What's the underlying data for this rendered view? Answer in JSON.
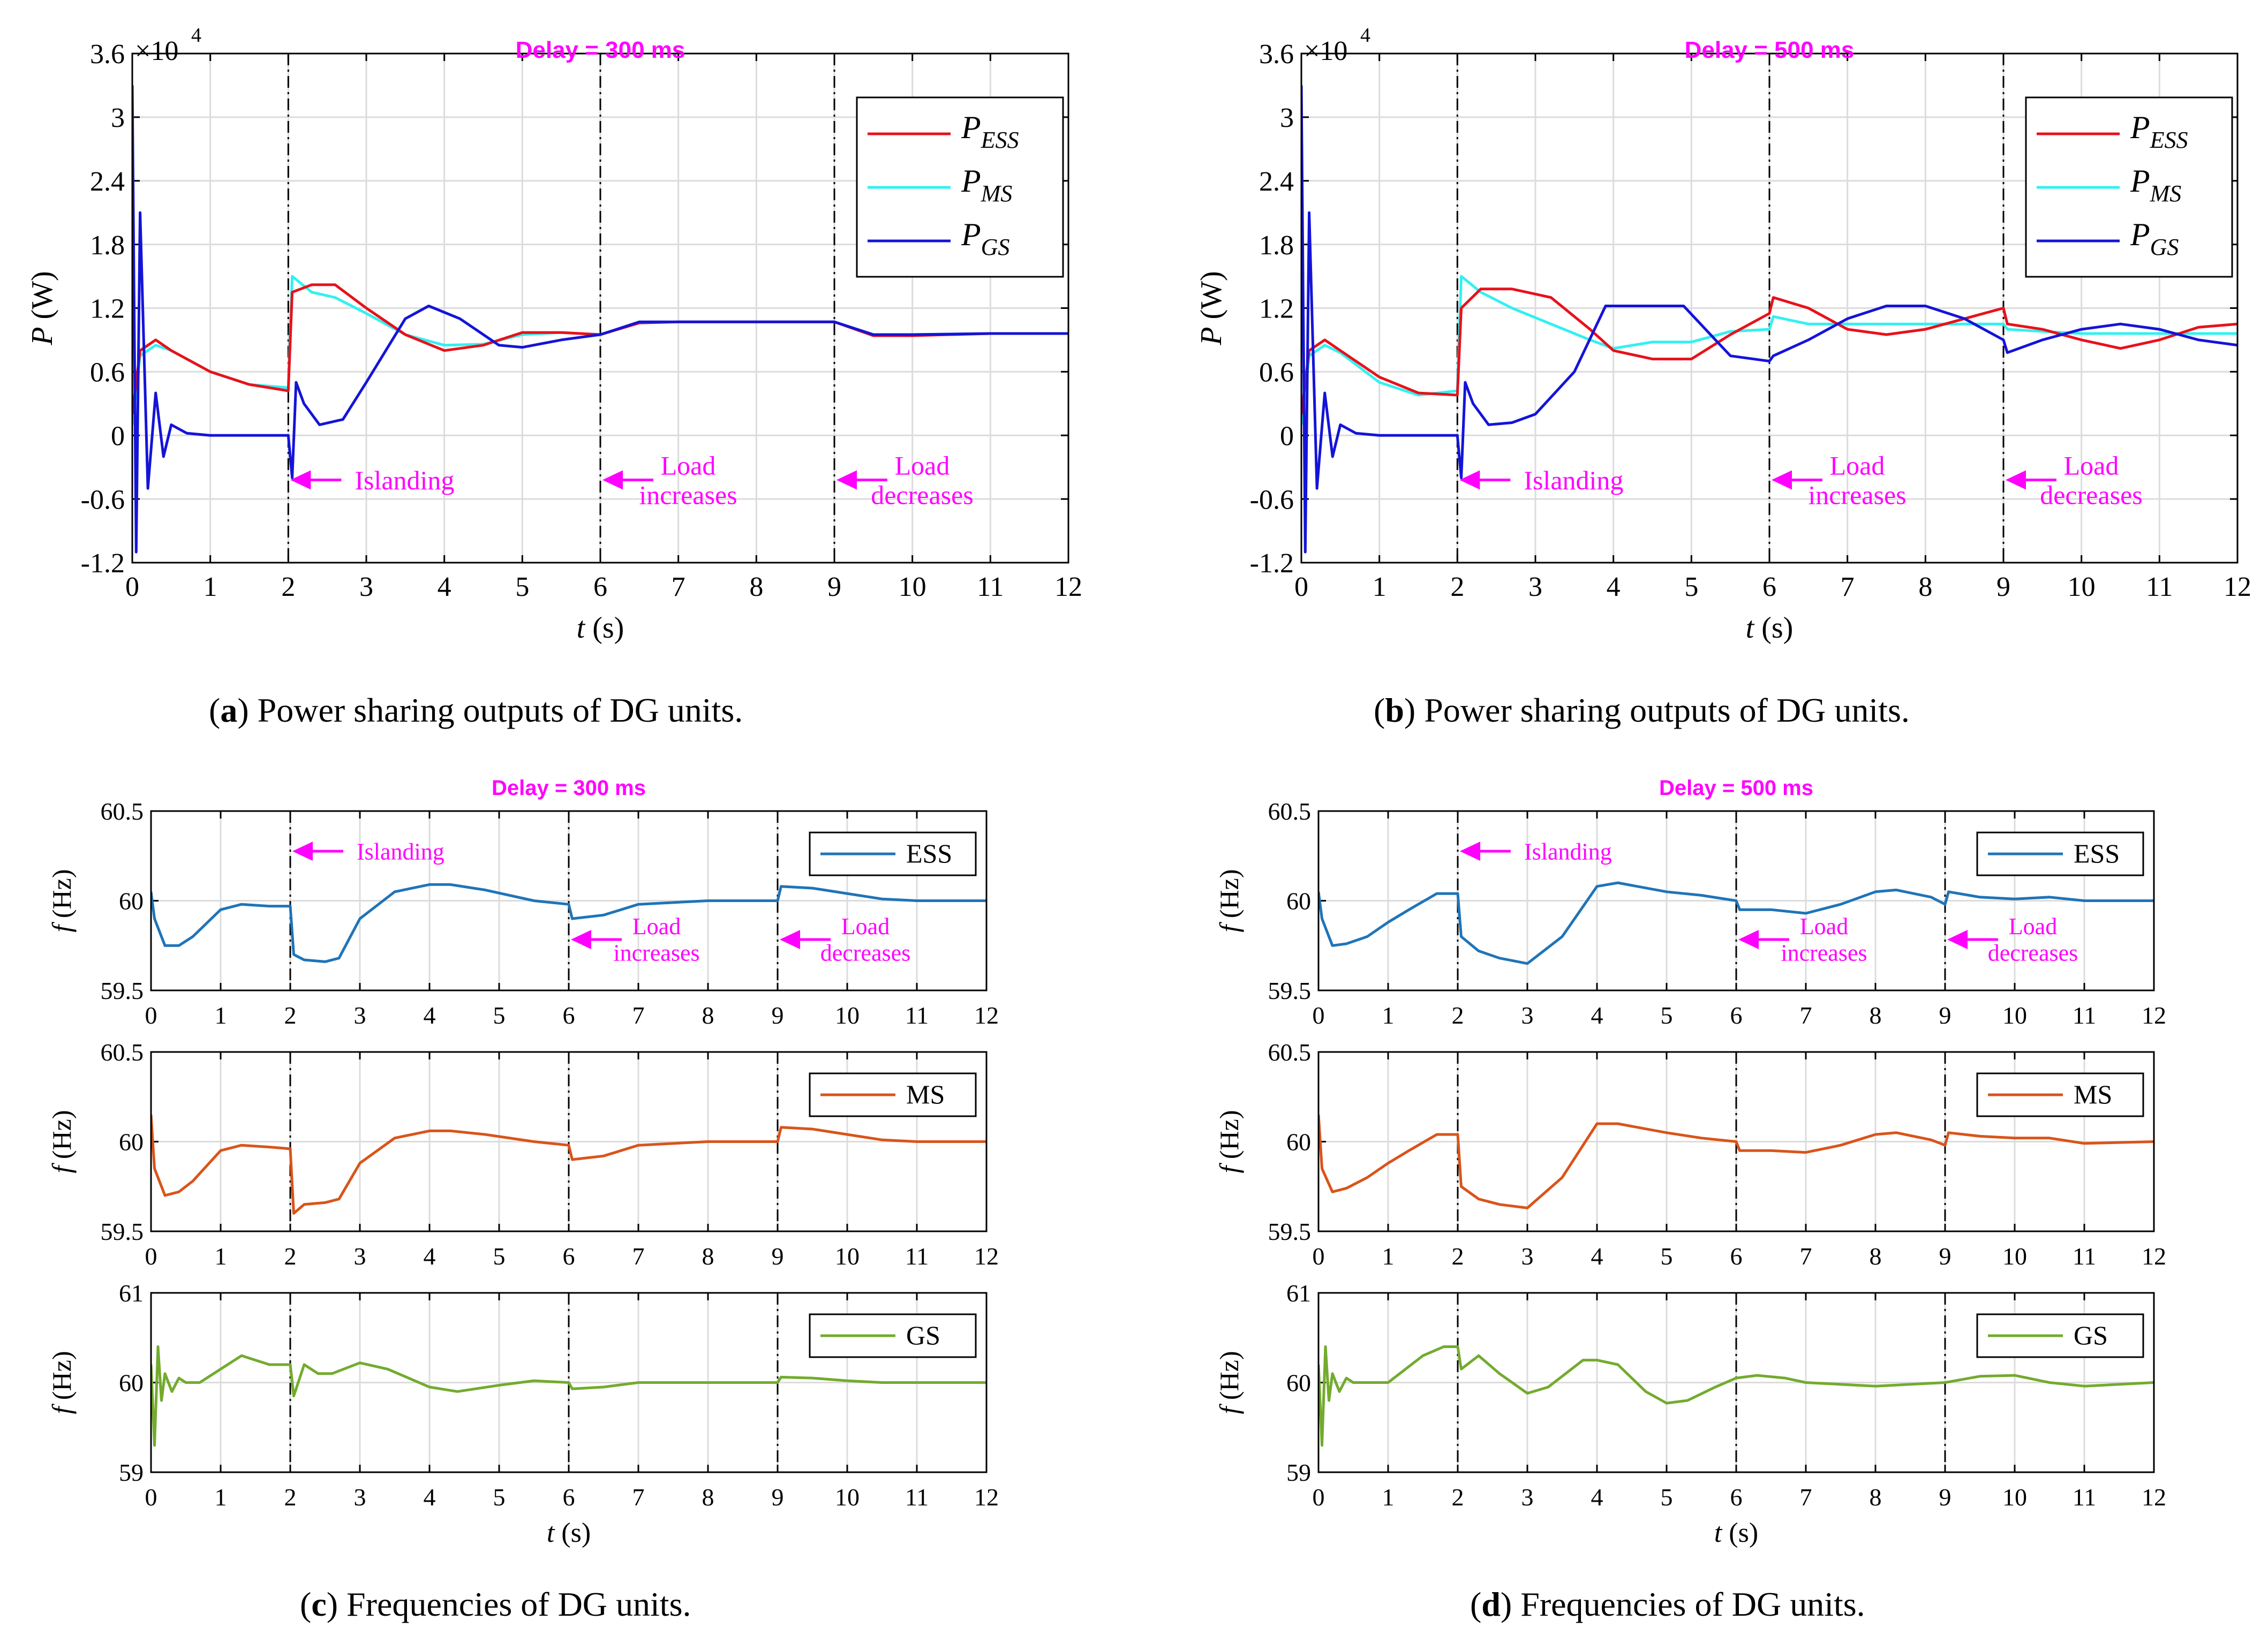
{
  "panels": [
    {
      "id": "a",
      "label": "a",
      "caption": "Power sharing outputs of DG units.",
      "delay": "Delay = 300 ms"
    },
    {
      "id": "b",
      "label": "b",
      "caption": "Power sharing outputs of DG units.",
      "delay": "Delay = 500 ms"
    },
    {
      "id": "c",
      "label": "c",
      "caption": "Frequencies of DG units.",
      "delay": "Delay = 300 ms"
    },
    {
      "id": "d",
      "label": "d",
      "caption": "Frequencies of DG units.",
      "delay": "Delay = 500 ms"
    }
  ],
  "events": {
    "islanding": "Islanding",
    "increase_1": "Load",
    "increase_2": "increases",
    "decrease_1": "Load",
    "decrease_2": "decreases",
    "times": [
      2,
      6,
      9
    ]
  },
  "colors": {
    "ess_power": "#e8111a",
    "ms_power": "#33f0f0",
    "gs_power": "#1414d8",
    "ess_freq": "#1f74b8",
    "ms_freq": "#d9541a",
    "gs_freq": "#73ab2e",
    "annotation": "#ff00ff",
    "grid": "#dcdcdc"
  },
  "chart_data": [
    {
      "type": "line",
      "panel": "a",
      "title": "Delay = 300 ms",
      "xlabel": "t (s)",
      "ylabel": "P (W)",
      "exponent": "×10^4",
      "xlim": [
        0,
        12
      ],
      "ylim": [
        -1.2,
        3.6
      ],
      "xticks": [
        "0",
        "1",
        "2",
        "3",
        "4",
        "5",
        "6",
        "7",
        "8",
        "9",
        "10",
        "11",
        "12"
      ],
      "yticks": [
        "-1.2",
        "-0.6",
        "0",
        "0.6",
        "1.2",
        "1.8",
        "2.4",
        "3",
        "3.6"
      ],
      "grid": true,
      "legend": "top-right",
      "series": [
        {
          "name": "P_ESS",
          "x": [
            0,
            0.1,
            0.3,
            0.5,
            1,
            1.5,
            2,
            2.05,
            2.3,
            2.6,
            3,
            3.5,
            4,
            4.5,
            5,
            5.5,
            6,
            6.5,
            7,
            8,
            9,
            9.5,
            10,
            11,
            12
          ],
          "y": [
            0.2,
            0.8,
            0.9,
            0.8,
            0.6,
            0.48,
            0.42,
            1.35,
            1.42,
            1.42,
            1.2,
            0.95,
            0.8,
            0.85,
            0.97,
            0.97,
            0.95,
            1.06,
            1.07,
            1.07,
            1.07,
            0.94,
            0.94,
            0.96,
            0.96
          ]
        },
        {
          "name": "P_MS",
          "x": [
            0,
            0.1,
            0.3,
            0.5,
            1,
            1.5,
            2,
            2.05,
            2.3,
            2.6,
            3,
            3.5,
            4,
            4.5,
            5,
            5.5,
            6,
            6.5,
            7,
            8,
            9,
            9.5,
            10,
            11,
            12
          ],
          "y": [
            0.1,
            0.75,
            0.85,
            0.8,
            0.6,
            0.48,
            0.45,
            1.5,
            1.35,
            1.3,
            1.15,
            0.95,
            0.85,
            0.86,
            0.95,
            0.97,
            0.95,
            1.06,
            1.07,
            1.07,
            1.07,
            0.95,
            0.95,
            0.96,
            0.96
          ]
        },
        {
          "name": "P_GS",
          "x": [
            0,
            0.05,
            0.1,
            0.2,
            0.3,
            0.4,
            0.5,
            0.7,
            1,
            2,
            2.05,
            2.1,
            2.2,
            2.4,
            2.7,
            3,
            3.5,
            3.8,
            4.2,
            4.7,
            5,
            5.5,
            6,
            6.5,
            7,
            8,
            9,
            9.5,
            10,
            11,
            12
          ],
          "y": [
            3.3,
            -1.1,
            2.1,
            -0.5,
            0.4,
            -0.2,
            0.1,
            0.02,
            0,
            0,
            -0.4,
            0.5,
            0.3,
            0.1,
            0.15,
            0.5,
            1.1,
            1.22,
            1.1,
            0.85,
            0.83,
            0.9,
            0.95,
            1.07,
            1.07,
            1.07,
            1.07,
            0.95,
            0.95,
            0.96,
            0.96
          ]
        }
      ]
    },
    {
      "type": "line",
      "panel": "b",
      "title": "Delay = 500 ms",
      "xlabel": "t (s)",
      "ylabel": "P (W)",
      "exponent": "×10^4",
      "xlim": [
        0,
        12
      ],
      "ylim": [
        -1.2,
        3.6
      ],
      "xticks": [
        "0",
        "1",
        "2",
        "3",
        "4",
        "5",
        "6",
        "7",
        "8",
        "9",
        "10",
        "11",
        "12"
      ],
      "yticks": [
        "-1.2",
        "-0.6",
        "0",
        "0.6",
        "1.2",
        "1.8",
        "2.4",
        "3",
        "3.6"
      ],
      "grid": true,
      "legend": "top-right",
      "series": [
        {
          "name": "P_ESS",
          "x": [
            0,
            0.1,
            0.3,
            0.5,
            1,
            1.5,
            2,
            2.05,
            2.3,
            2.7,
            3.2,
            3.7,
            4,
            4.5,
            5,
            5.5,
            6,
            6.05,
            6.5,
            7,
            7.5,
            8,
            8.5,
            9,
            9.05,
            9.5,
            10,
            10.5,
            11,
            11.5,
            12
          ],
          "y": [
            0.2,
            0.8,
            0.9,
            0.8,
            0.55,
            0.4,
            0.38,
            1.2,
            1.38,
            1.38,
            1.3,
            1.0,
            0.8,
            0.72,
            0.72,
            0.95,
            1.15,
            1.3,
            1.2,
            1.0,
            0.95,
            1.0,
            1.1,
            1.2,
            1.05,
            1.0,
            0.9,
            0.82,
            0.9,
            1.02,
            1.05
          ]
        },
        {
          "name": "P_MS",
          "x": [
            0,
            0.1,
            0.3,
            0.5,
            1,
            1.5,
            2,
            2.05,
            2.3,
            2.7,
            3.2,
            3.7,
            4,
            4.5,
            5,
            5.5,
            6,
            6.05,
            6.5,
            7,
            7.5,
            8,
            8.5,
            9,
            9.05,
            9.5,
            10,
            10.5,
            11,
            11.5,
            12
          ],
          "y": [
            0.1,
            0.75,
            0.85,
            0.78,
            0.5,
            0.38,
            0.42,
            1.5,
            1.35,
            1.2,
            1.05,
            0.9,
            0.82,
            0.88,
            0.88,
            0.98,
            1.0,
            1.12,
            1.05,
            1.05,
            1.05,
            1.05,
            1.05,
            1.05,
            1.0,
            0.98,
            0.96,
            0.96,
            0.96,
            0.96,
            0.96
          ]
        },
        {
          "name": "P_GS",
          "x": [
            0,
            0.05,
            0.1,
            0.2,
            0.3,
            0.4,
            0.5,
            0.7,
            1,
            2,
            2.05,
            2.1,
            2.2,
            2.4,
            2.7,
            3,
            3.5,
            3.9,
            4.0,
            4.9,
            5.5,
            6,
            6.05,
            6.5,
            7,
            7.5,
            8,
            8.5,
            9,
            9.05,
            9.5,
            10,
            10.5,
            11,
            11.5,
            12
          ],
          "y": [
            3.3,
            -1.1,
            2.1,
            -0.5,
            0.4,
            -0.2,
            0.1,
            0.02,
            0,
            0,
            -0.4,
            0.5,
            0.3,
            0.1,
            0.12,
            0.2,
            0.6,
            1.22,
            1.22,
            1.22,
            0.75,
            0.7,
            0.75,
            0.9,
            1.1,
            1.22,
            1.22,
            1.1,
            0.9,
            0.78,
            0.9,
            1.0,
            1.05,
            1.0,
            0.9,
            0.85
          ]
        }
      ]
    },
    {
      "type": "line",
      "panel": "c",
      "title": "Delay = 300 ms",
      "xlabel": "t (s)",
      "xticks": [
        "0",
        "1",
        "2",
        "3",
        "4",
        "5",
        "6",
        "7",
        "8",
        "9",
        "10",
        "11",
        "12"
      ],
      "subplots": [
        {
          "name": "ESS",
          "ylabel": "f (Hz)",
          "ylim": [
            59.5,
            60.5
          ],
          "yticks": [
            "59.5",
            "60",
            "60.5"
          ],
          "x": [
            0,
            0.05,
            0.2,
            0.4,
            0.6,
            1,
            1.3,
            1.7,
            2,
            2.05,
            2.2,
            2.5,
            2.7,
            3,
            3.5,
            4,
            4.3,
            4.8,
            5.5,
            6,
            6.05,
            6.5,
            7,
            8,
            9,
            9.05,
            9.5,
            10,
            10.5,
            11,
            12
          ],
          "y": [
            60.05,
            59.9,
            59.75,
            59.75,
            59.8,
            59.95,
            59.98,
            59.97,
            59.97,
            59.7,
            59.67,
            59.66,
            59.68,
            59.9,
            60.05,
            60.09,
            60.09,
            60.06,
            60.0,
            59.98,
            59.9,
            59.92,
            59.98,
            60.0,
            60.0,
            60.08,
            60.07,
            60.04,
            60.01,
            60.0,
            60.0
          ]
        },
        {
          "name": "MS",
          "ylabel": "f (Hz)",
          "ylim": [
            59.5,
            60.5
          ],
          "yticks": [
            "59.5",
            "60",
            "60.5"
          ],
          "x": [
            0,
            0.05,
            0.2,
            0.4,
            0.6,
            1,
            1.3,
            1.7,
            2,
            2.05,
            2.2,
            2.5,
            2.7,
            3,
            3.5,
            4,
            4.3,
            4.8,
            5.5,
            6,
            6.05,
            6.5,
            7,
            8,
            9,
            9.05,
            9.5,
            10,
            10.5,
            11,
            12
          ],
          "y": [
            60.15,
            59.85,
            59.7,
            59.72,
            59.78,
            59.95,
            59.98,
            59.97,
            59.96,
            59.6,
            59.65,
            59.66,
            59.68,
            59.88,
            60.02,
            60.06,
            60.06,
            60.04,
            60.0,
            59.98,
            59.9,
            59.92,
            59.98,
            60.0,
            60.0,
            60.08,
            60.07,
            60.04,
            60.01,
            60.0,
            60.0
          ]
        },
        {
          "name": "GS",
          "ylabel": "f (Hz)",
          "ylim": [
            59,
            61
          ],
          "yticks": [
            "59",
            "60",
            "61"
          ],
          "x": [
            0,
            0.05,
            0.1,
            0.15,
            0.2,
            0.3,
            0.4,
            0.5,
            0.7,
            1,
            1.3,
            1.7,
            2,
            2.05,
            2.2,
            2.4,
            2.6,
            3,
            3.4,
            4,
            4.4,
            5,
            5.5,
            6,
            6.05,
            6.5,
            7,
            8,
            9,
            9.05,
            9.5,
            10,
            10.5,
            11,
            12
          ],
          "y": [
            60.2,
            59.3,
            60.4,
            59.8,
            60.1,
            59.9,
            60.05,
            60.0,
            60.0,
            60.15,
            60.3,
            60.2,
            60.2,
            59.85,
            60.2,
            60.1,
            60.1,
            60.22,
            60.15,
            59.95,
            59.9,
            59.97,
            60.02,
            60.0,
            59.93,
            59.95,
            60.0,
            60.0,
            60.0,
            60.06,
            60.05,
            60.02,
            60.0,
            60.0,
            60.0
          ]
        }
      ]
    },
    {
      "type": "line",
      "panel": "d",
      "title": "Delay = 500 ms",
      "xlabel": "t (s)",
      "xticks": [
        "0",
        "1",
        "2",
        "3",
        "4",
        "5",
        "6",
        "7",
        "8",
        "9",
        "10",
        "11",
        "12"
      ],
      "subplots": [
        {
          "name": "ESS",
          "ylabel": "f (Hz)",
          "ylim": [
            59.5,
            60.5
          ],
          "yticks": [
            "59.5",
            "60",
            "60.5"
          ],
          "x": [
            0,
            0.05,
            0.2,
            0.4,
            0.7,
            1,
            1.3,
            1.7,
            2,
            2.05,
            2.3,
            2.6,
            3,
            3.5,
            4,
            4.3,
            5,
            5.5,
            6,
            6.05,
            6.5,
            7,
            7.5,
            8,
            8.3,
            8.8,
            9,
            9.05,
            9.5,
            10,
            10.5,
            11,
            12
          ],
          "y": [
            60.05,
            59.9,
            59.75,
            59.76,
            59.8,
            59.88,
            59.95,
            60.04,
            60.04,
            59.8,
            59.72,
            59.68,
            59.65,
            59.8,
            60.08,
            60.1,
            60.05,
            60.03,
            60.0,
            59.95,
            59.95,
            59.93,
            59.98,
            60.05,
            60.06,
            60.02,
            59.98,
            60.05,
            60.02,
            60.01,
            60.02,
            60.0,
            60.0
          ]
        },
        {
          "name": "MS",
          "ylabel": "f (Hz)",
          "ylim": [
            59.5,
            60.5
          ],
          "yticks": [
            "59.5",
            "60",
            "60.5"
          ],
          "x": [
            0,
            0.05,
            0.2,
            0.4,
            0.7,
            1,
            1.3,
            1.7,
            2,
            2.05,
            2.3,
            2.6,
            3,
            3.5,
            4,
            4.3,
            5,
            5.5,
            6,
            6.05,
            6.5,
            7,
            7.5,
            8,
            8.3,
            8.8,
            9,
            9.05,
            9.5,
            10,
            10.5,
            11,
            12
          ],
          "y": [
            60.15,
            59.85,
            59.72,
            59.74,
            59.8,
            59.88,
            59.95,
            60.04,
            60.04,
            59.75,
            59.68,
            59.65,
            59.63,
            59.8,
            60.1,
            60.1,
            60.05,
            60.02,
            60.0,
            59.95,
            59.95,
            59.94,
            59.98,
            60.04,
            60.05,
            60.01,
            59.98,
            60.05,
            60.03,
            60.02,
            60.02,
            59.99,
            60.0
          ]
        },
        {
          "name": "GS",
          "ylabel": "f (Hz)",
          "ylim": [
            59,
            61
          ],
          "yticks": [
            "59",
            "60",
            "61"
          ],
          "x": [
            0,
            0.05,
            0.1,
            0.15,
            0.2,
            0.3,
            0.4,
            0.5,
            0.7,
            1,
            1.5,
            1.8,
            2,
            2.05,
            2.3,
            2.6,
            3,
            3.3,
            3.8,
            4,
            4.3,
            4.7,
            5,
            5.3,
            5.7,
            6,
            6.3,
            6.7,
            7,
            8,
            9,
            9.5,
            10,
            10.5,
            11,
            12
          ],
          "y": [
            60.2,
            59.3,
            60.4,
            59.8,
            60.1,
            59.9,
            60.05,
            60.0,
            60.0,
            60.0,
            60.3,
            60.4,
            60.4,
            60.15,
            60.3,
            60.1,
            59.88,
            59.95,
            60.25,
            60.25,
            60.2,
            59.9,
            59.77,
            59.8,
            59.95,
            60.05,
            60.08,
            60.05,
            60.0,
            59.96,
            60.0,
            60.07,
            60.08,
            60.0,
            59.96,
            60.0
          ]
        }
      ]
    }
  ]
}
